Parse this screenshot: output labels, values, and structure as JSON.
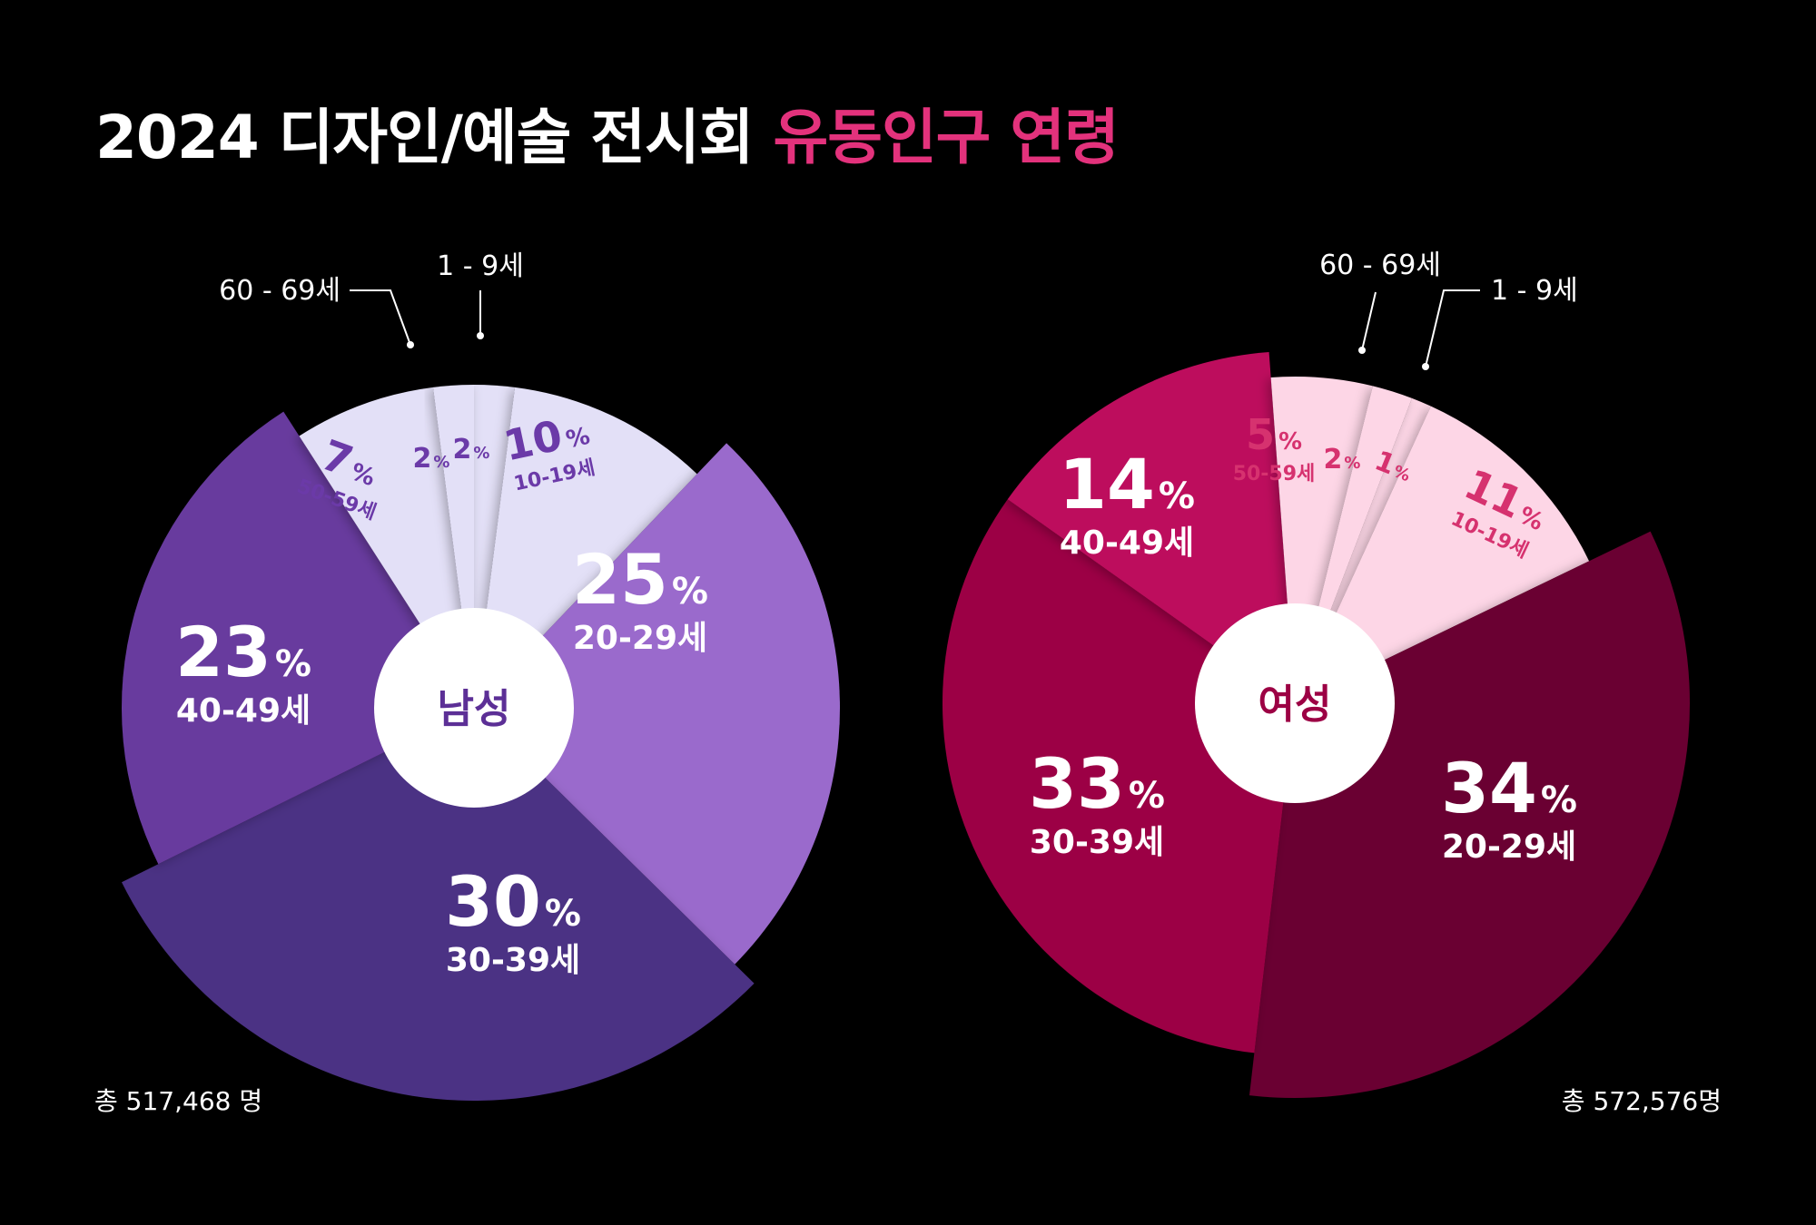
{
  "title": {
    "main": "2024 디자인/예술 전시회 ",
    "accent": "유동인구 연령"
  },
  "colors": {
    "accent": "#e3327c",
    "background": "#000000"
  },
  "totals": {
    "male": "총 517,468 명",
    "female": "총 572,576명"
  },
  "chart_data": [
    {
      "type": "pie",
      "title": "",
      "center_label": "남성",
      "total": "총 517,468 명",
      "slices": [
        {
          "label": "1 - 9세",
          "value": 2,
          "value_text": "2",
          "unit": "%",
          "age": "",
          "color": "#e3e0f7",
          "text_color": "#6b3aa8"
        },
        {
          "label": "10-19세",
          "value": 10,
          "value_text": "10",
          "unit": "%",
          "age": "10-19세",
          "color": "#e3e0f7",
          "text_color": "#6b3aa8"
        },
        {
          "label": "20-29세",
          "value": 25,
          "value_text": "25",
          "unit": "%",
          "age": "20-29세",
          "color": "#9a6bcc",
          "text_color": "#ffffff"
        },
        {
          "label": "30-39세",
          "value": 30,
          "value_text": "30",
          "unit": "%",
          "age": "30-39세",
          "color": "#4c3284",
          "text_color": "#ffffff"
        },
        {
          "label": "40-49세",
          "value": 23,
          "value_text": "23",
          "unit": "%",
          "age": "40-49세",
          "color": "#683a9e",
          "text_color": "#ffffff"
        },
        {
          "label": "50-59세",
          "value": 7,
          "value_text": "7",
          "unit": "%",
          "age": "50-59세",
          "color": "#e3e0f7",
          "text_color": "#6b3aa8"
        },
        {
          "label": "60 - 69세",
          "value": 2,
          "value_text": "2",
          "unit": "%",
          "age": "",
          "color": "#e3e0f7",
          "text_color": "#6b3aa8"
        }
      ]
    },
    {
      "type": "pie",
      "title": "",
      "center_label": "여성",
      "total": "총 572,576명",
      "slices": [
        {
          "label": "1 - 9세",
          "value": 1,
          "value_text": "1",
          "unit": "%",
          "age": "",
          "color": "#fdd6e6",
          "text_color": "#d6326f"
        },
        {
          "label": "10-19세",
          "value": 11,
          "value_text": "11",
          "unit": "%",
          "age": "10-19세",
          "color": "#fdd6e6",
          "text_color": "#d6326f"
        },
        {
          "label": "20-29세",
          "value": 34,
          "value_text": "34",
          "unit": "%",
          "age": "20-29세",
          "color": "#6a0231",
          "text_color": "#ffffff"
        },
        {
          "label": "30-39세",
          "value": 33,
          "value_text": "33",
          "unit": "%",
          "age": "30-39세",
          "color": "#9c0044",
          "text_color": "#ffffff"
        },
        {
          "label": "40-49세",
          "value": 14,
          "value_text": "14",
          "unit": "%",
          "age": "40-49세",
          "color": "#bd0b5d",
          "text_color": "#ffffff"
        },
        {
          "label": "50-59세",
          "value": 5,
          "value_text": "5",
          "unit": "%",
          "age": "50-59세",
          "color": "#fdd6e6",
          "text_color": "#d6326f"
        },
        {
          "label": "60 - 69세",
          "value": 2,
          "value_text": "2",
          "unit": "%",
          "age": "",
          "color": "#fdd6e6",
          "text_color": "#d6326f"
        }
      ]
    }
  ]
}
